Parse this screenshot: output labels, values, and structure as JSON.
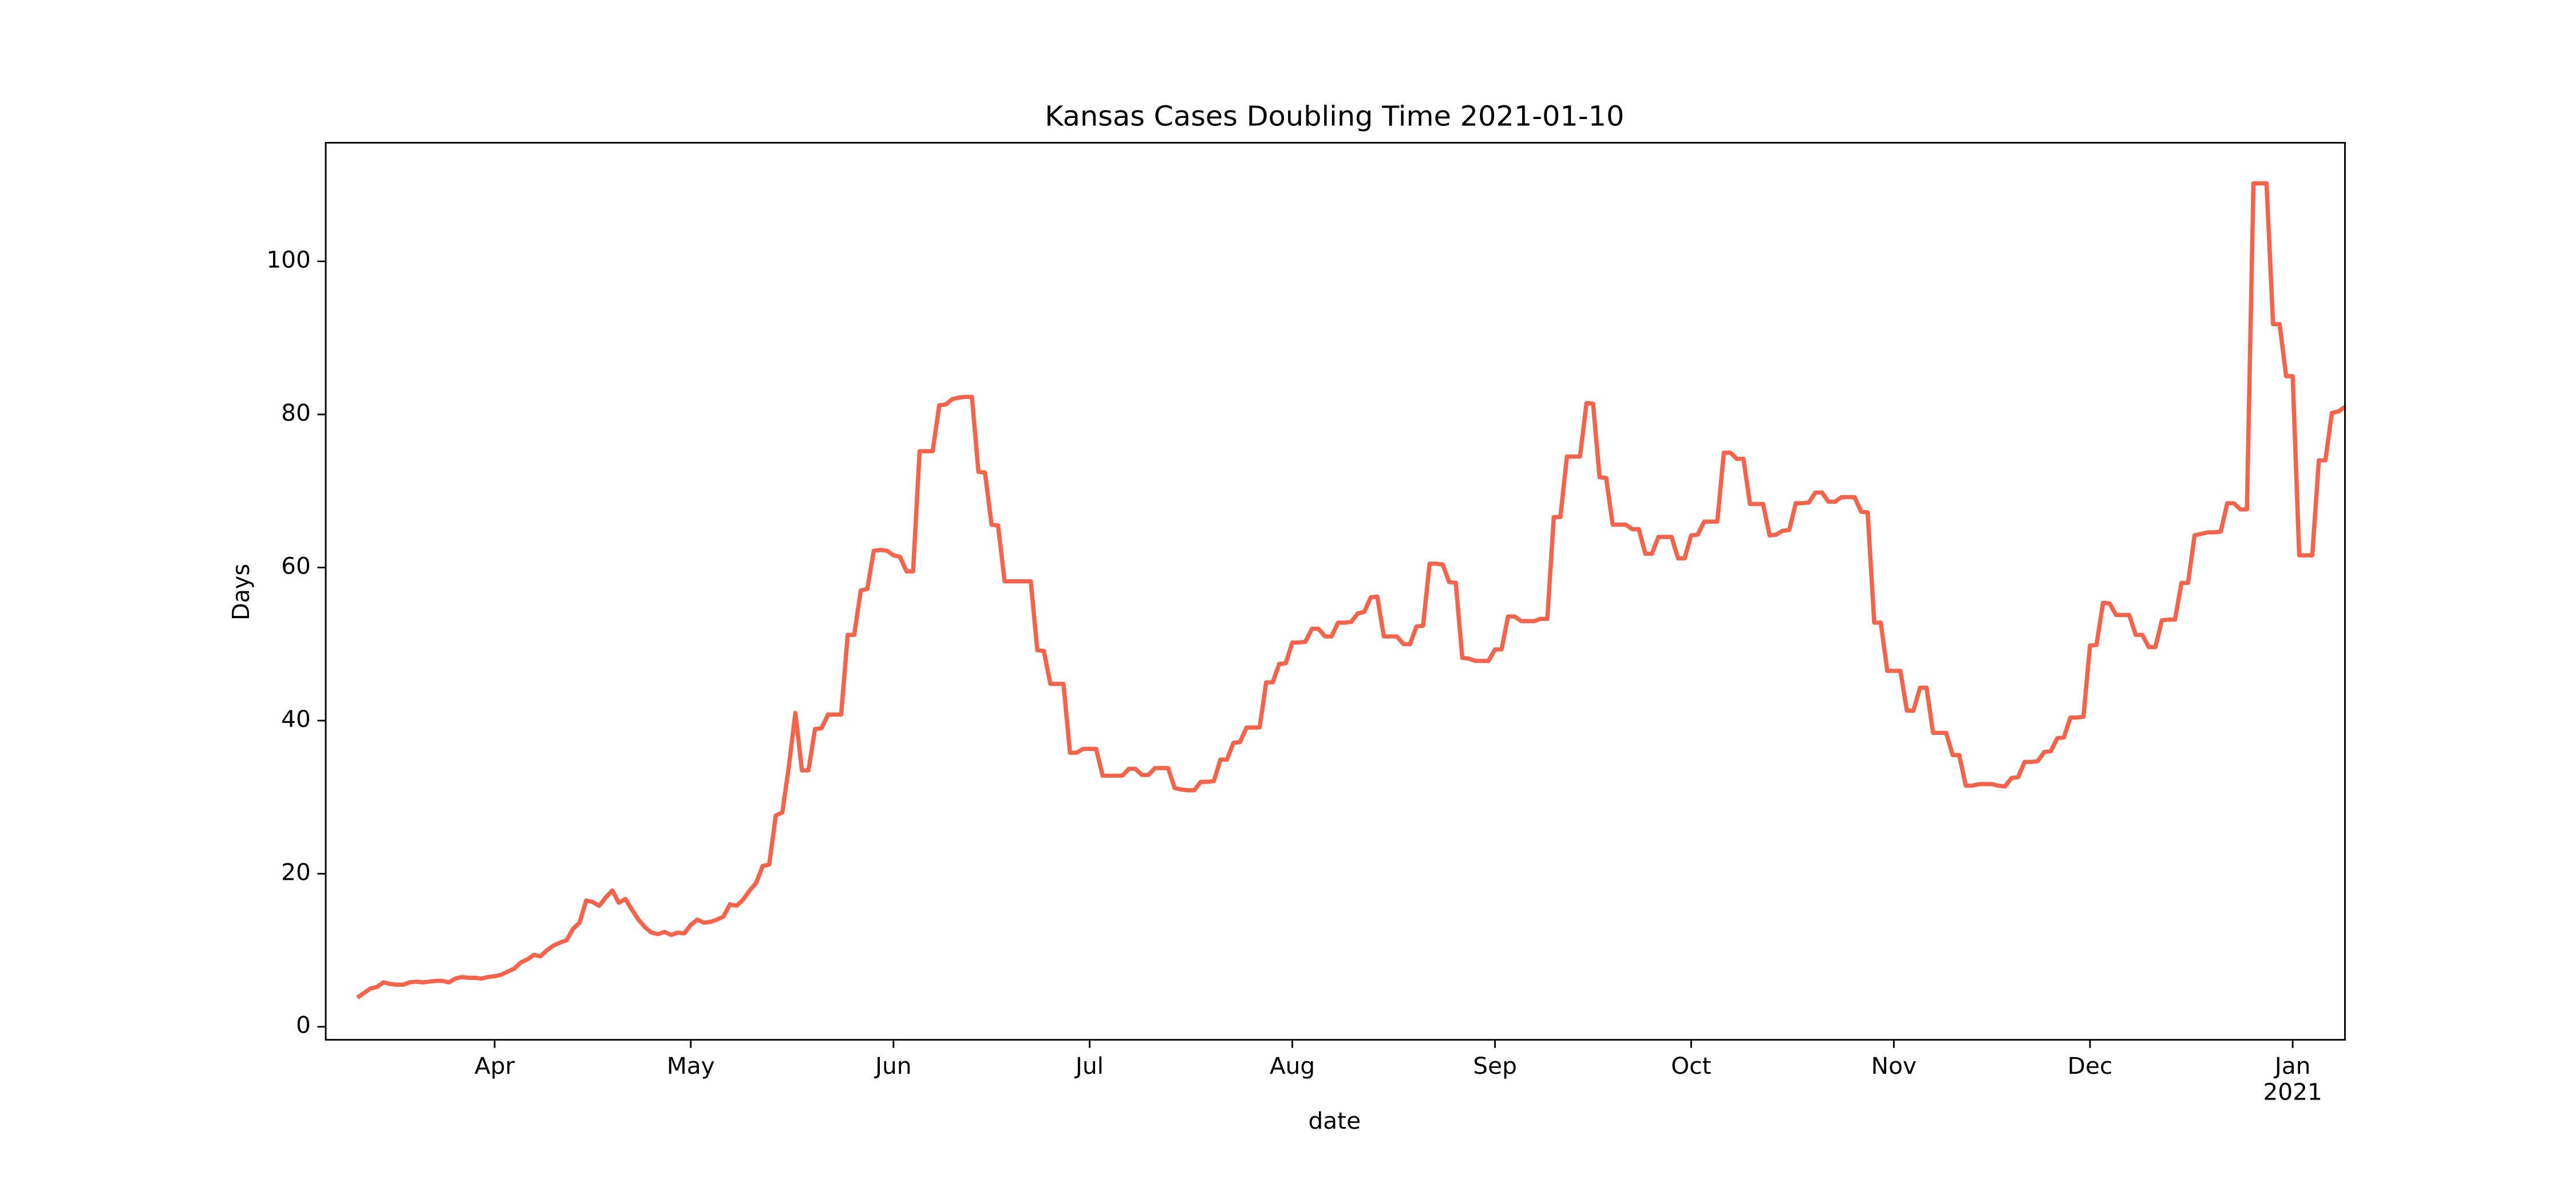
{
  "chart_data": {
    "type": "line",
    "title": "Kansas Cases Doubling Time 2021-01-10",
    "xlabel": "date",
    "ylabel": "Days",
    "color": "#f2654c",
    "grid": false,
    "ylim": [
      -1.7,
      115.5
    ],
    "yticks": [
      0,
      20,
      40,
      60,
      80,
      100
    ],
    "categories": [
      null,
      null,
      null,
      null,
      null,
      null,
      null,
      null,
      null,
      null,
      null,
      null,
      null,
      null,
      null,
      null,
      null,
      null,
      null,
      null,
      null,
      "Apr",
      null,
      null,
      null,
      null,
      null,
      null,
      null,
      null,
      null,
      null,
      null,
      null,
      null,
      null,
      null,
      null,
      null,
      null,
      null,
      null,
      null,
      null,
      null,
      null,
      null,
      null,
      null,
      null,
      null,
      "May",
      null,
      null,
      null,
      null,
      null,
      null,
      null,
      null,
      null,
      null,
      null,
      null,
      null,
      null,
      null,
      null,
      null,
      null,
      null,
      null,
      null,
      null,
      null,
      null,
      null,
      null,
      null,
      null,
      null,
      null,
      "Jun",
      null,
      null,
      null,
      null,
      null,
      null,
      null,
      null,
      null,
      null,
      null,
      null,
      null,
      null,
      null,
      null,
      null,
      null,
      null,
      null,
      null,
      null,
      null,
      null,
      null,
      null,
      null,
      null,
      null,
      "Jul",
      null,
      null,
      null,
      null,
      null,
      null,
      null,
      null,
      null,
      null,
      null,
      null,
      null,
      null,
      null,
      null,
      null,
      null,
      null,
      null,
      null,
      null,
      null,
      null,
      null,
      null,
      null,
      null,
      null,
      null,
      "Aug",
      null,
      null,
      null,
      null,
      null,
      null,
      null,
      null,
      null,
      null,
      null,
      null,
      null,
      null,
      null,
      null,
      null,
      null,
      null,
      null,
      null,
      null,
      null,
      null,
      null,
      null,
      null,
      null,
      null,
      null,
      "Sep",
      null,
      null,
      null,
      null,
      null,
      null,
      null,
      null,
      null,
      null,
      null,
      null,
      null,
      null,
      null,
      null,
      null,
      null,
      null,
      null,
      null,
      null,
      null,
      null,
      null,
      null,
      null,
      null,
      null,
      "Oct",
      null,
      null,
      null,
      null,
      null,
      null,
      null,
      null,
      null,
      null,
      null,
      null,
      null,
      null,
      null,
      null,
      null,
      null,
      null,
      null,
      null,
      null,
      null,
      null,
      null,
      null,
      null,
      null,
      null,
      null,
      "Nov",
      null,
      null,
      null,
      null,
      null,
      null,
      null,
      null,
      null,
      null,
      null,
      null,
      null,
      null,
      null,
      null,
      null,
      null,
      null,
      null,
      null,
      null,
      null,
      null,
      null,
      null,
      null,
      null,
      null,
      "Dec",
      null,
      null,
      null,
      null,
      null,
      null,
      null,
      null,
      null,
      null,
      null,
      null,
      null,
      null,
      null,
      null,
      null,
      null,
      null,
      null,
      null,
      null,
      null,
      null,
      null,
      null,
      null,
      null,
      null,
      null,
      "Jan\n2021",
      null,
      null,
      null,
      null,
      null,
      null,
      null,
      null
    ],
    "values": [
      3.8,
      4.4,
      5.0,
      5.2,
      5.8,
      5.6,
      5.5,
      5.5,
      5.8,
      5.9,
      5.8,
      5.9,
      6.0,
      6.0,
      5.8,
      6.3,
      6.5,
      6.4,
      6.4,
      6.3,
      6.5,
      6.6,
      6.8,
      7.2,
      7.6,
      8.4,
      8.8,
      9.4,
      9.2,
      10.0,
      10.6,
      11.0,
      11.3,
      12.8,
      13.6,
      16.5,
      16.3,
      15.8,
      16.9,
      17.8,
      16.2,
      16.7,
      15.3,
      14.0,
      13.0,
      12.3,
      12.1,
      12.4,
      12.0,
      12.3,
      12.2,
      13.3,
      14.0,
      13.6,
      13.7,
      14.0,
      14.4,
      16.0,
      15.8,
      16.6,
      17.8,
      18.8,
      21.0,
      21.2,
      27.6,
      28.0,
      34.0,
      41.0,
      33.5,
      33.5,
      38.9,
      39.0,
      40.8,
      40.8,
      40.8,
      51.2,
      51.2,
      57.0,
      57.2,
      62.2,
      62.3,
      62.2,
      61.6,
      61.4,
      59.5,
      59.5,
      75.2,
      75.2,
      75.2,
      81.2,
      81.3,
      82.0,
      82.2,
      82.3,
      82.3,
      72.5,
      72.4,
      65.6,
      65.5,
      58.2,
      58.2,
      58.2,
      58.2,
      58.2,
      49.2,
      49.1,
      44.8,
      44.8,
      44.8,
      35.8,
      35.8,
      36.3,
      36.3,
      36.3,
      32.8,
      32.8,
      32.8,
      32.8,
      33.7,
      33.7,
      32.9,
      32.9,
      33.8,
      33.8,
      33.8,
      31.2,
      31.0,
      30.9,
      30.9,
      32.0,
      32.0,
      32.1,
      34.9,
      34.9,
      37.1,
      37.2,
      39.1,
      39.1,
      39.1,
      45.0,
      45.0,
      47.4,
      47.5,
      50.2,
      50.2,
      50.3,
      52.0,
      52.0,
      51.0,
      51.0,
      52.8,
      52.8,
      52.9,
      54.0,
      54.2,
      56.1,
      56.2,
      51.0,
      51.0,
      51.0,
      50.0,
      50.0,
      52.3,
      52.4,
      60.5,
      60.5,
      60.4,
      58.1,
      58.0,
      48.2,
      48.1,
      47.8,
      47.8,
      47.8,
      49.3,
      49.3,
      53.6,
      53.6,
      53.0,
      53.0,
      53.0,
      53.3,
      53.3,
      66.6,
      66.6,
      74.5,
      74.5,
      74.5,
      81.5,
      81.4,
      71.8,
      71.7,
      65.6,
      65.6,
      65.6,
      65.0,
      65.0,
      61.8,
      61.8,
      64.0,
      64.0,
      64.0,
      61.2,
      61.2,
      64.2,
      64.3,
      66.0,
      66.0,
      66.0,
      75.0,
      75.0,
      74.2,
      74.2,
      68.3,
      68.3,
      68.3,
      64.2,
      64.3,
      64.8,
      64.9,
      68.4,
      68.4,
      68.5,
      69.8,
      69.8,
      68.6,
      68.6,
      69.2,
      69.2,
      69.2,
      67.3,
      67.2,
      52.8,
      52.8,
      46.5,
      46.5,
      46.5,
      41.3,
      41.3,
      44.3,
      44.3,
      38.4,
      38.4,
      38.4,
      35.5,
      35.5,
      31.5,
      31.5,
      31.7,
      31.7,
      31.7,
      31.5,
      31.4,
      32.5,
      32.6,
      34.6,
      34.6,
      34.7,
      35.9,
      36.0,
      37.7,
      37.8,
      40.4,
      40.4,
      40.5,
      49.8,
      49.9,
      55.4,
      55.3,
      53.8,
      53.8,
      53.8,
      51.2,
      51.2,
      49.6,
      49.6,
      53.1,
      53.2,
      53.2,
      58.0,
      58.0,
      64.2,
      64.4,
      64.6,
      64.6,
      64.7,
      68.4,
      68.4,
      67.6,
      67.6,
      110.2,
      110.2,
      110.2,
      91.8,
      91.8,
      85.0,
      85.0,
      61.6,
      61.6,
      61.6,
      74.0,
      74.0,
      80.2,
      80.4,
      81.0
    ]
  }
}
